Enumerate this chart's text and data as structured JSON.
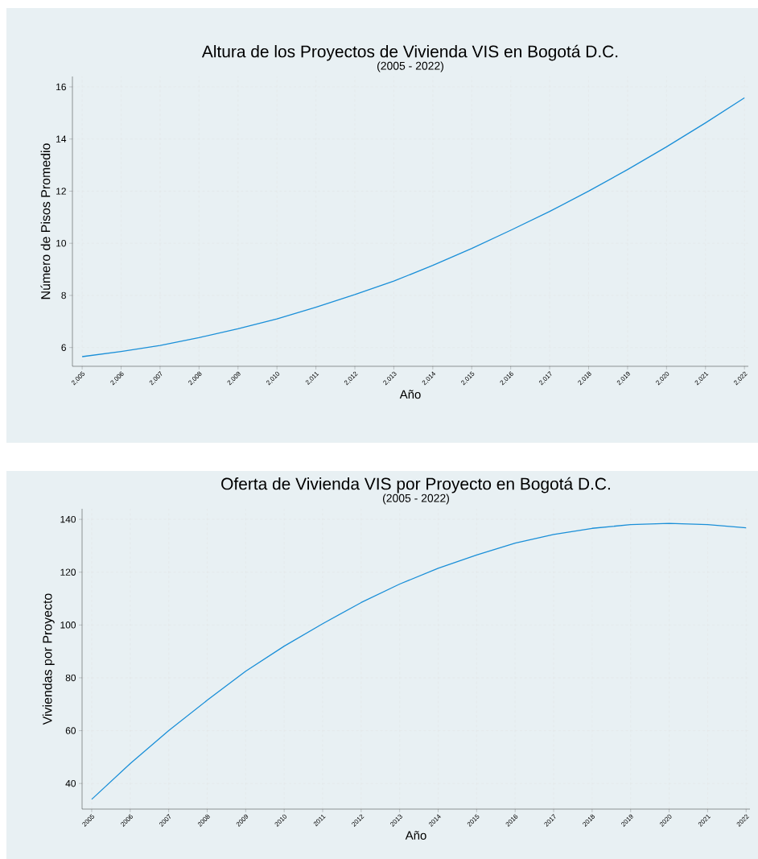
{
  "chart_data": [
    {
      "type": "line",
      "title": "Altura de los Proyectos de Vivienda VIS en Bogotá D.C.",
      "subtitle": "(2005 - 2022)",
      "xlabel": "Año",
      "ylabel": "Número de Pisos Promedio",
      "x": [
        2005,
        2006,
        2007,
        2008,
        2009,
        2010,
        2011,
        2012,
        2013,
        2014,
        2015,
        2016,
        2017,
        2018,
        2019,
        2020,
        2021,
        2022
      ],
      "series": [
        {
          "color": "#1a8fd8",
          "values": [
            5.65,
            5.85,
            6.08,
            6.38,
            6.72,
            7.1,
            7.55,
            8.03,
            8.55,
            9.15,
            9.8,
            10.5,
            11.22,
            12.0,
            12.83,
            13.7,
            14.62,
            15.58
          ]
        }
      ],
      "xlim": [
        2004.75,
        2022.1
      ],
      "ylim": [
        5.28,
        16.4
      ],
      "xticks": [
        {
          "value": 2005,
          "label": "2,005"
        },
        {
          "value": 2006,
          "label": "2,006"
        },
        {
          "value": 2007,
          "label": "2,007"
        },
        {
          "value": 2008,
          "label": "2,008"
        },
        {
          "value": 2009,
          "label": "2,009"
        },
        {
          "value": 2010,
          "label": "2,010"
        },
        {
          "value": 2011,
          "label": "2,011"
        },
        {
          "value": 2012,
          "label": "2,012"
        },
        {
          "value": 2013,
          "label": "2,013"
        },
        {
          "value": 2014,
          "label": "2,014"
        },
        {
          "value": 2015,
          "label": "2,015"
        },
        {
          "value": 2016,
          "label": "2,016"
        },
        {
          "value": 2017,
          "label": "2,017"
        },
        {
          "value": 2018,
          "label": "2,018"
        },
        {
          "value": 2019,
          "label": "2,019"
        },
        {
          "value": 2020,
          "label": "2,020"
        },
        {
          "value": 2021,
          "label": "2,021"
        },
        {
          "value": 2022,
          "label": "2,022"
        }
      ],
      "yticks": [
        6,
        8,
        10,
        12,
        14,
        16
      ],
      "grid": true,
      "marker": "none",
      "line_style": "solid"
    },
    {
      "type": "line",
      "title": "Oferta de Vivienda VIS por Proyecto en Bogotá D.C.",
      "subtitle": "(2005 - 2022)",
      "xlabel": "Año",
      "ylabel": "Viviendas por Proyecto",
      "x": [
        2005,
        2006,
        2007,
        2008,
        2009,
        2010,
        2011,
        2012,
        2013,
        2014,
        2015,
        2016,
        2017,
        2018,
        2019,
        2020,
        2021,
        2022
      ],
      "series": [
        {
          "color": "#1a8fd8",
          "values": [
            34,
            47.5,
            60,
            71.5,
            82.5,
            92,
            100.5,
            108.5,
            115.5,
            121.5,
            126.5,
            131,
            134.3,
            136.6,
            138,
            138.5,
            138,
            136.8
          ]
        }
      ],
      "xlim": [
        2004.75,
        2022.1
      ],
      "ylim": [
        30.3,
        144
      ],
      "xticks": [
        2005,
        2006,
        2007,
        2008,
        2009,
        2010,
        2011,
        2012,
        2013,
        2014,
        2015,
        2016,
        2017,
        2018,
        2019,
        2020,
        2021,
        2022
      ],
      "yticks": [
        40,
        60,
        80,
        100,
        120,
        140
      ],
      "grid": true,
      "marker": "none",
      "line_style": "solid"
    }
  ]
}
